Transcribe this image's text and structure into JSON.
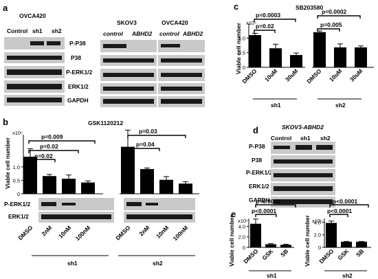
{
  "panel_a": {
    "letter": "a",
    "cell_line_left": "OVCA420",
    "lanes_left": [
      "Control",
      "sh1",
      "sh2"
    ],
    "rows_left": [
      "P-P38",
      "P38",
      "P-ERK1/2",
      "ERK1/2",
      "GAPDH"
    ],
    "cell_line_mid": "SKOV3",
    "lanes_mid": [
      "control",
      "ABHD2"
    ],
    "cell_line_right": "OVCA420",
    "lanes_right": [
      "control",
      "ABHD2"
    ]
  },
  "panel_b": {
    "letter": "b",
    "title": "GSK1120212",
    "ylabel": "Viable cell number",
    "exponent": "x10⁵",
    "yticks": [
      "1.0",
      "0.5",
      "0"
    ],
    "pvalues_sh1": [
      "p=0.009",
      "p=0.02",
      "p=0.02"
    ],
    "pvalues_sh2": [
      "p=0.03",
      "p=0.04"
    ],
    "blot_rows": [
      "P-ERK1/2",
      "ERK1/2"
    ],
    "categories": [
      "DMSO",
      "2nM",
      "10nM",
      "100nM"
    ],
    "groups": [
      "sh1",
      "sh2"
    ]
  },
  "panel_c": {
    "letter": "c",
    "title": "SB203580",
    "ylabel": "Viable cell number",
    "exponent": "x10⁵",
    "yticks": [
      "1.0",
      "0.5",
      "0"
    ],
    "pvalues_sh1": [
      "p=0.0003",
      "p=0.02"
    ],
    "pvalues_sh2": [
      "p=0.0002",
      "p=0.005"
    ],
    "categories": [
      "DMSO",
      "10uM",
      "30uM"
    ],
    "groups": [
      "sh1",
      "sh2"
    ]
  },
  "panel_d": {
    "letter": "d",
    "cell_line": "SKOV3-ABHD2",
    "lanes": [
      "Control",
      "sh1",
      "sh2"
    ],
    "rows": [
      "P-P38",
      "P38",
      "P-ERK1/2",
      "ERK1/2",
      "GAPDH"
    ]
  },
  "panel_e": {
    "letter": "e",
    "ylabel": "Viable cell number",
    "exponent": "x10⁵",
    "yticks_sh1": [
      "4.0",
      "2.0",
      "0"
    ],
    "yticks_sh2": [
      "4.0",
      "2.0",
      "0"
    ],
    "pvalues_sh1": [
      "p<0.0001",
      "p<0.0001"
    ],
    "pvalues_sh2": [
      "p<0.0001",
      "p<0.0001"
    ],
    "categories": [
      "DMSO",
      "GSK",
      "SB"
    ],
    "groups": [
      "sh1",
      "sh2"
    ]
  },
  "chart_data": [
    {
      "type": "bar",
      "title": "GSK1120212",
      "ylabel": "Viable cell number (x10⁵)",
      "categories": [
        "DMSO",
        "2nM",
        "10nM",
        "100nM"
      ],
      "ylim": [
        0,
        2.2
      ],
      "series": [
        {
          "name": "sh1",
          "values": [
            1.38,
            0.66,
            0.56,
            0.42
          ],
          "errors": [
            0.3,
            0.06,
            0.14,
            0.06
          ]
        },
        {
          "name": "sh2",
          "values": [
            1.75,
            0.92,
            0.52,
            0.38
          ],
          "errors": [
            0.62,
            0.04,
            0.12,
            0.07
          ]
        }
      ]
    },
    {
      "type": "bar",
      "title": "SB203580",
      "ylabel": "Viable cell number (x10⁵)",
      "categories": [
        "DMSO",
        "10uM",
        "30uM"
      ],
      "ylim": [
        0,
        1.5
      ],
      "series": [
        {
          "name": "sh1",
          "values": [
            1.1,
            0.65,
            0.42
          ],
          "errors": [
            0.06,
            0.14,
            0.07
          ]
        },
        {
          "name": "sh2",
          "values": [
            1.2,
            0.68,
            0.68
          ],
          "errors": [
            0.04,
            0.12,
            0.05
          ]
        }
      ]
    },
    {
      "type": "bar",
      "ylabel": "Viable cell number (x10⁵)",
      "categories": [
        "DMSO",
        "GSK",
        "SB"
      ],
      "ylim": [
        0,
        5.5
      ],
      "series": [
        {
          "name": "sh1",
          "values": [
            4.5,
            0.6,
            0.5
          ],
          "errors": [
            0.9,
            0.1,
            0.1
          ]
        }
      ]
    },
    {
      "type": "bar",
      "ylabel": "Viable cell number (x10⁵)",
      "categories": [
        "DMSO",
        "GSK",
        "SB"
      ],
      "ylim": [
        0,
        4.6
      ],
      "series": [
        {
          "name": "sh2",
          "values": [
            3.9,
            0.9,
            0.9
          ],
          "errors": [
            0.3,
            0.05,
            0.05
          ]
        }
      ]
    }
  ]
}
